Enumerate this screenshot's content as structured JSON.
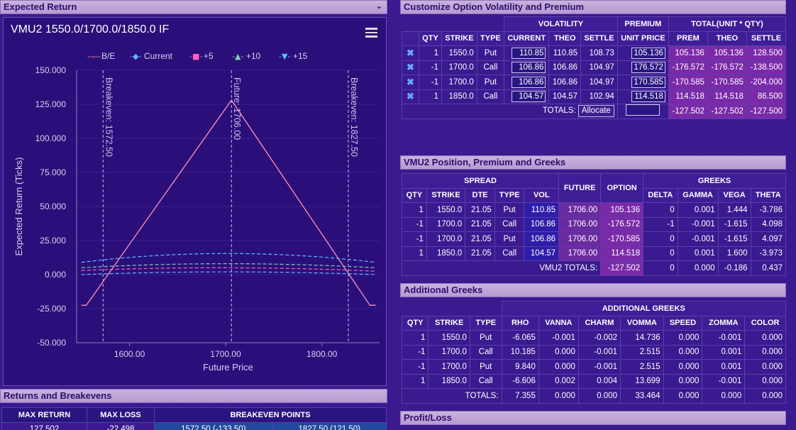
{
  "expected_return": {
    "header": "Expected Return",
    "chart_title": "VMU2 1550.0/1700.0/1850.0 IF"
  },
  "chart_data": {
    "type": "line",
    "xlabel": "Future Price",
    "ylabel": "Expected Return (Ticks)",
    "xlim": [
      1545,
      1535
    ],
    "ylim": [
      -50,
      150
    ],
    "xticks": [
      "1600.00",
      "1700.00",
      "1800.00"
    ],
    "yticks": [
      "150.000",
      "125.000",
      "100.000",
      "75.000",
      "50.000",
      "25.000",
      "0.000",
      "-25.000",
      "-50.000"
    ],
    "legend": [
      "B/E",
      "Current",
      "+5",
      "+10",
      "+15"
    ],
    "legend_placement": "top",
    "breakeven_lines": [
      {
        "x": 1572.5,
        "label": "Breakeven: 1572.50"
      },
      {
        "x": 1706.0,
        "label": "Future: 1706.00"
      },
      {
        "x": 1827.5,
        "label": "Breakeven: 1827.50"
      }
    ],
    "series": [
      {
        "name": "B/E",
        "color": "#ff8fb8",
        "points": [
          [
            1550,
            -22.5
          ],
          [
            1555,
            -22.5
          ],
          [
            1706,
            128
          ],
          [
            1850,
            -22.5
          ],
          [
            1856,
            -22.5
          ]
        ]
      },
      {
        "name": "Current",
        "color": "#6ab0ff",
        "points": [
          [
            1550,
            0
          ],
          [
            1700,
            2
          ],
          [
            1856,
            0
          ]
        ]
      },
      {
        "name": "+5",
        "color": "#ff5fc0",
        "points": [
          [
            1550,
            3
          ],
          [
            1700,
            5
          ],
          [
            1856,
            2.5
          ]
        ]
      },
      {
        "name": "+10",
        "color": "#7ad0b0",
        "points": [
          [
            1550,
            5
          ],
          [
            1700,
            8
          ],
          [
            1856,
            5
          ]
        ]
      },
      {
        "name": "+15",
        "color": "#5ac0ff",
        "points": [
          [
            1550,
            9
          ],
          [
            1700,
            15.5
          ],
          [
            1856,
            9
          ]
        ]
      }
    ]
  },
  "returns": {
    "header": "Returns and Breakevens",
    "cols": [
      "MAX RETURN",
      "MAX LOSS",
      "BREAKEVEN POINTS"
    ],
    "row": [
      "127.502",
      "-22.498",
      "1572.50 (-133.50)",
      "1827.50 (121.50)"
    ]
  },
  "customize": {
    "header": "Customize Option Volatility and Premium",
    "group_headers": [
      "VOLATILITY",
      "PREMIUM",
      "TOTAL(UNIT * QTY)"
    ],
    "cols": [
      "QTY",
      "STRIKE",
      "TYPE",
      "CURRENT",
      "THEO",
      "SETTLE",
      "UNIT PRICE",
      "PREM",
      "THEO",
      "SETTLE"
    ],
    "rows": [
      [
        "1",
        "1550.0",
        "Put",
        "110.85",
        "110.85",
        "108.73",
        "105.136",
        "105.136",
        "105.136",
        "128.500"
      ],
      [
        "-1",
        "1700.0",
        "Call",
        "106.86",
        "106.86",
        "104.97",
        "176.572",
        "-176.572",
        "-176.572",
        "-138.500"
      ],
      [
        "-1",
        "1700.0",
        "Put",
        "106.86",
        "106.86",
        "104.97",
        "170.585",
        "-170.585",
        "-170.585",
        "-204.000"
      ],
      [
        "1",
        "1850.0",
        "Call",
        "104.57",
        "104.57",
        "102.94",
        "114.518",
        "114.518",
        "114.518",
        "86.500"
      ]
    ],
    "totals_label": "TOTALS:",
    "allocate": "Allocate",
    "totals": [
      "-127.502",
      "-127.502",
      "-127.500"
    ]
  },
  "position": {
    "header": "VMU2 Position, Premium and Greeks",
    "group_headers": [
      "SPREAD",
      "GREEKS"
    ],
    "cols": [
      "QTY",
      "STRIKE",
      "DTE",
      "TYPE",
      "VOL",
      "FUTURE",
      "OPTION",
      "DELTA",
      "GAMMA",
      "VEGA",
      "THETA"
    ],
    "rows": [
      [
        "1",
        "1550.0",
        "21.05",
        "Put",
        "110.85",
        "1706.00",
        "105.136",
        "0",
        "0.001",
        "1.444",
        "-3.786"
      ],
      [
        "-1",
        "1700.0",
        "21.05",
        "Call",
        "106.86",
        "1706.00",
        "-176.572",
        "-1",
        "-0.001",
        "-1.615",
        "4.098"
      ],
      [
        "-1",
        "1700.0",
        "21.05",
        "Put",
        "106.86",
        "1706.00",
        "-170.585",
        "0",
        "-0.001",
        "-1.615",
        "4.097"
      ],
      [
        "1",
        "1850.0",
        "21.05",
        "Call",
        "104.57",
        "1706.00",
        "114.518",
        "0",
        "0.001",
        "1.600",
        "-3.973"
      ]
    ],
    "totals_label": "VMU2 TOTALS:",
    "totals": [
      "-127.502",
      "0",
      "0.000",
      "-0.186",
      "0.437"
    ]
  },
  "additional": {
    "header": "Additional Greeks",
    "group_header": "ADDITIONAL GREEKS",
    "cols": [
      "QTY",
      "STRIKE",
      "TYPE",
      "RHO",
      "VANNA",
      "CHARM",
      "VOMMA",
      "SPEED",
      "ZOMMA",
      "COLOR"
    ],
    "rows": [
      [
        "1",
        "1550.0",
        "Put",
        "-6.065",
        "-0.001",
        "-0.002",
        "14.736",
        "0.000",
        "-0.001",
        "0.000"
      ],
      [
        "-1",
        "1700.0",
        "Call",
        "10.185",
        "0.000",
        "-0.001",
        "2.515",
        "0.000",
        "0.001",
        "0.000"
      ],
      [
        "-1",
        "1700.0",
        "Put",
        "9.840",
        "0.000",
        "-0.001",
        "2.515",
        "0.000",
        "0.001",
        "0.000"
      ],
      [
        "1",
        "1850.0",
        "Call",
        "-6.606",
        "0.002",
        "0.004",
        "13.699",
        "0.000",
        "-0.001",
        "0.000"
      ]
    ],
    "totals_label": "TOTALS:",
    "totals": [
      "7.355",
      "0.000",
      "0.000",
      "33.464",
      "0.000",
      "0.000",
      "0.000"
    ]
  },
  "profit_loss": {
    "header": "Profit/Loss"
  }
}
